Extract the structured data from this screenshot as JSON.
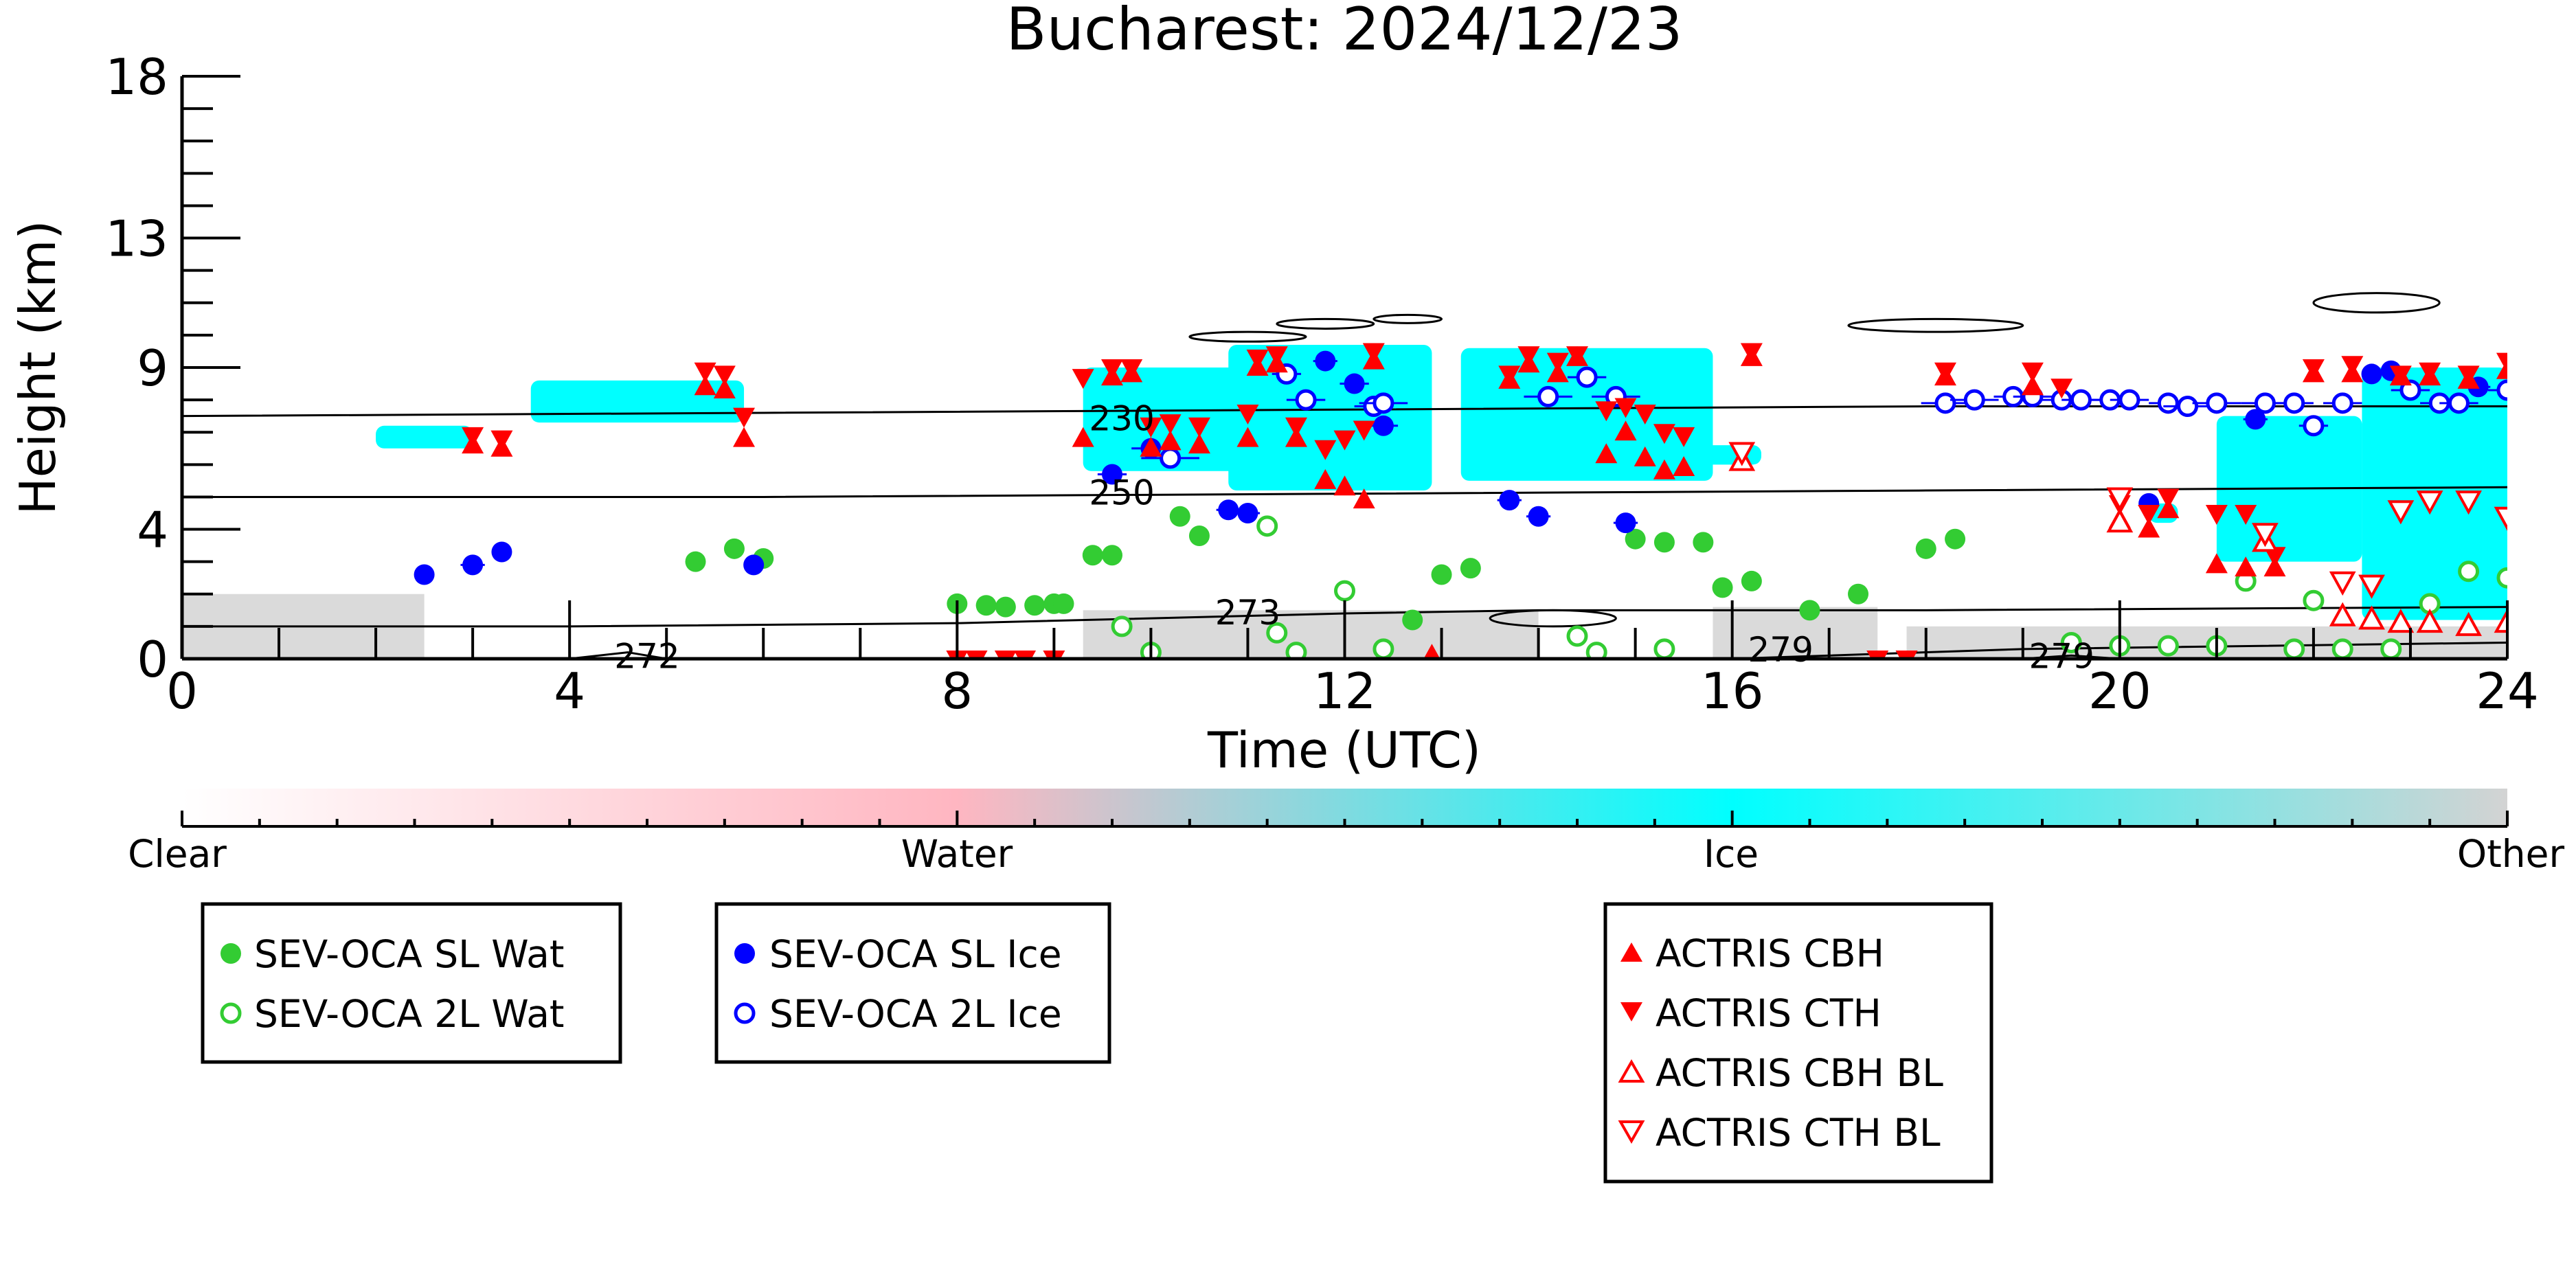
{
  "chart_data": {
    "type": "scatter",
    "title": "Bucharest: 2024/12/23",
    "xlabel": "Time (UTC)",
    "ylabel": "Height (km)",
    "xlim": [
      0,
      24
    ],
    "ylim": [
      0,
      18
    ],
    "x_ticks": [
      0,
      4,
      8,
      12,
      16,
      20,
      24
    ],
    "x_tick_labels": [
      "0",
      "4",
      "8",
      "12",
      "16",
      "20",
      "24"
    ],
    "y_ticks": [
      0,
      4,
      9,
      13,
      18
    ],
    "y_tick_labels": [
      "0",
      "4",
      "9",
      "13",
      "18"
    ],
    "grid": false,
    "background_classification": {
      "colorbar_labels": [
        "Clear",
        "Water",
        "Ice",
        "Other"
      ],
      "colors": {
        "clear": "#ffffff",
        "water": "#ffb6c1",
        "ice": "#00ffff",
        "other": "#d3d3d3"
      },
      "ice_regions": [
        {
          "t_start": 2.0,
          "t_end": 3.0,
          "h_start": 6.5,
          "h_end": 7.2
        },
        {
          "t_start": 3.6,
          "t_end": 5.8,
          "h_start": 7.3,
          "h_end": 8.6
        },
        {
          "t_start": 9.3,
          "t_end": 11.0,
          "h_start": 5.8,
          "h_end": 9.0
        },
        {
          "t_start": 10.8,
          "t_end": 12.9,
          "h_start": 5.2,
          "h_end": 9.7
        },
        {
          "t_start": 13.2,
          "t_end": 15.8,
          "h_start": 5.5,
          "h_end": 9.6
        },
        {
          "t_start": 15.6,
          "t_end": 16.3,
          "h_start": 6.0,
          "h_end": 6.6
        },
        {
          "t_start": 20.3,
          "t_end": 20.6,
          "h_start": 4.2,
          "h_end": 4.8
        },
        {
          "t_start": 21.0,
          "t_end": 22.5,
          "h_start": 3.0,
          "h_end": 7.5
        },
        {
          "t_start": 22.5,
          "t_end": 24.0,
          "h_start": 1.2,
          "h_end": 9.0
        }
      ],
      "other_regions": [
        {
          "t_start": 0.0,
          "t_end": 2.5,
          "h_start": 0.0,
          "h_end": 2.0
        },
        {
          "t_start": 9.3,
          "t_end": 14.0,
          "h_start": 0.0,
          "h_end": 1.5
        },
        {
          "t_start": 15.8,
          "t_end": 17.5,
          "h_start": 0.0,
          "h_end": 1.6
        },
        {
          "t_start": 17.8,
          "t_end": 24.0,
          "h_start": 0.0,
          "h_end": 1.0
        }
      ]
    },
    "temperature_isolines": [
      {
        "label": "230",
        "label_pos": [
          9.7,
          7.4
        ],
        "points": [
          [
            0,
            7.5
          ],
          [
            6,
            7.6
          ],
          [
            12,
            7.7
          ],
          [
            18,
            7.8
          ],
          [
            24,
            7.8
          ]
        ]
      },
      {
        "label": "250",
        "label_pos": [
          9.7,
          5.1
        ],
        "points": [
          [
            0,
            5.0
          ],
          [
            6,
            5.0
          ],
          [
            12,
            5.1
          ],
          [
            18,
            5.2
          ],
          [
            24,
            5.3
          ]
        ]
      },
      {
        "label": "273",
        "label_pos": [
          11.0,
          1.4
        ],
        "points": [
          [
            0,
            1.0
          ],
          [
            4,
            1.0
          ],
          [
            8,
            1.1
          ],
          [
            12,
            1.4
          ],
          [
            14,
            1.5
          ],
          [
            18,
            1.5
          ],
          [
            24,
            1.6
          ]
        ]
      },
      {
        "label": "272",
        "label_pos": [
          4.8,
          0.05
        ],
        "points": [
          [
            4.0,
            0.0
          ],
          [
            4.6,
            0.2
          ],
          [
            5.0,
            0.0
          ]
        ]
      },
      {
        "label": "279",
        "label_pos": [
          16.5,
          0.25
        ],
        "points": [
          [
            16.0,
            0.0
          ],
          [
            19.0,
            0.3
          ],
          [
            24.0,
            0.5
          ]
        ]
      },
      {
        "label": "279",
        "label_pos": [
          19.4,
          0.05
        ],
        "points": [
          [
            19.0,
            0.0
          ],
          [
            19.5,
            0.1
          ],
          [
            20.0,
            0.0
          ]
        ]
      }
    ],
    "temperature_contours": [
      {
        "t_start": 10.4,
        "t_end": 11.6,
        "h_start": 9.8,
        "h_end": 10.1
      },
      {
        "t_start": 11.3,
        "t_end": 12.3,
        "h_start": 10.2,
        "h_end": 10.5
      },
      {
        "t_start": 12.3,
        "t_end": 13.0,
        "h_start": 10.4,
        "h_end": 10.6
      },
      {
        "t_start": 17.2,
        "t_end": 19.0,
        "h_start": 10.1,
        "h_end": 10.5
      },
      {
        "t_start": 22.0,
        "t_end": 23.3,
        "h_start": 10.7,
        "h_end": 11.3
      },
      {
        "t_start": 13.5,
        "t_end": 14.8,
        "h_start": 1.0,
        "h_end": 1.5
      }
    ],
    "series": [
      {
        "name": "SEV-OCA SL Wat",
        "marker": "filled-circle",
        "color": "#33cc33",
        "x": [
          5.3,
          5.7,
          6.0,
          8.0,
          8.3,
          8.5,
          8.8,
          9.0,
          9.1,
          9.4,
          9.6,
          10.3,
          10.5,
          12.7,
          13.0,
          13.3,
          15.0,
          15.3,
          15.7,
          15.9,
          16.2,
          16.8,
          17.3,
          18.0,
          18.3
        ],
        "y": [
          3.0,
          3.4,
          3.1,
          1.7,
          1.65,
          1.6,
          1.65,
          1.7,
          1.7,
          3.2,
          3.2,
          4.4,
          3.8,
          1.2,
          2.6,
          2.8,
          3.7,
          3.6,
          3.6,
          2.2,
          2.4,
          1.5,
          2.0,
          3.4,
          3.7
        ]
      },
      {
        "name": "SEV-OCA 2L Wat",
        "marker": "open-circle",
        "color": "#33cc33",
        "x": [
          9.7,
          10.0,
          11.2,
          11.3,
          11.5,
          12.0,
          12.4,
          14.4,
          14.6,
          15.3,
          19.5,
          20.0,
          20.5,
          21.0,
          21.3,
          21.8,
          22.0,
          22.3,
          22.8,
          23.2,
          23.6,
          24.0
        ],
        "y": [
          1.0,
          0.2,
          4.1,
          0.8,
          0.2,
          2.1,
          0.3,
          0.7,
          0.2,
          0.3,
          0.5,
          0.4,
          0.4,
          0.4,
          2.4,
          0.3,
          1.8,
          0.3,
          0.3,
          1.7,
          2.7,
          2.5
        ]
      },
      {
        "name": "SEV-OCA SL Ice",
        "marker": "filled-circle",
        "color": "#0000ff",
        "x": [
          2.5,
          3.0,
          3.3,
          5.9,
          9.6,
          10.0,
          10.8,
          11.0,
          11.8,
          12.1,
          12.4,
          13.7,
          14.0,
          14.9,
          20.3,
          21.4,
          22.6,
          22.8,
          23.7
        ],
        "y": [
          2.6,
          2.9,
          3.3,
          2.9,
          5.7,
          6.5,
          4.6,
          4.5,
          9.2,
          8.5,
          7.2,
          4.9,
          4.4,
          4.2,
          4.8,
          7.4,
          8.8,
          8.9,
          8.4
        ],
        "err_h": [
          0.2,
          0.25,
          0.2,
          0.2,
          0.3,
          0.4,
          0.25,
          0.25,
          0.25,
          0.3,
          0.3,
          0.25,
          0.25,
          0.25,
          0.2,
          0.25,
          0.2,
          0.2,
          0.25
        ]
      },
      {
        "name": "SEV-OCA 2L Ice",
        "marker": "open-circle",
        "color": "#0000ff",
        "x": [
          10.2,
          11.4,
          11.6,
          12.3,
          12.4,
          14.1,
          14.5,
          14.8,
          18.2,
          18.5,
          18.9,
          19.1,
          19.4,
          19.6,
          19.9,
          20.1,
          20.5,
          20.7,
          21.0,
          21.5,
          21.8,
          22.0,
          22.3,
          23.0,
          23.3,
          23.5,
          24.0
        ],
        "y": [
          6.2,
          8.8,
          8.0,
          7.8,
          7.9,
          8.1,
          8.7,
          8.1,
          7.9,
          8.0,
          8.1,
          8.1,
          8.0,
          8.0,
          8.0,
          8.0,
          7.9,
          7.8,
          7.9,
          7.9,
          7.9,
          7.2,
          7.9,
          8.3,
          7.9,
          7.9,
          8.3
        ],
        "err_h": [
          0.6,
          0.3,
          0.4,
          0.4,
          0.5,
          0.5,
          0.4,
          0.5,
          0.5,
          0.5,
          0.4,
          0.4,
          0.4,
          0.4,
          0.4,
          0.4,
          0.4,
          0.5,
          0.5,
          0.5,
          0.4,
          0.3,
          0.4,
          0.4,
          0.4,
          0.4,
          0.4
        ]
      },
      {
        "name": "ACTRIS CBH",
        "marker": "filled-triangle-up",
        "color": "#ff0000",
        "x": [
          3.0,
          3.3,
          5.4,
          5.6,
          5.8,
          9.3,
          9.6,
          9.8,
          10.0,
          10.2,
          10.5,
          11.0,
          11.1,
          11.3,
          11.5,
          11.8,
          12.0,
          12.2,
          12.3,
          12.9,
          13.7,
          13.9,
          14.2,
          14.4,
          14.7,
          14.9,
          15.1,
          15.3,
          15.5,
          16.2,
          18.2,
          19.1,
          20.0,
          20.3,
          20.5,
          21.0,
          21.3,
          21.6,
          22.0,
          22.4,
          22.9,
          23.2,
          23.6,
          24.0
        ],
        "y": [
          6.6,
          6.5,
          8.4,
          8.3,
          6.8,
          6.8,
          8.7,
          8.8,
          6.5,
          6.7,
          6.6,
          6.8,
          9.0,
          9.1,
          6.8,
          5.5,
          5.3,
          4.9,
          9.2,
          0.1,
          8.6,
          9.1,
          8.8,
          9.3,
          6.3,
          7.0,
          6.2,
          5.8,
          5.9,
          9.3,
          8.7,
          8.4,
          4.3,
          4.0,
          4.6,
          2.9,
          2.8,
          2.8,
          8.8,
          8.8,
          8.7,
          8.7,
          8.6,
          8.9
        ]
      },
      {
        "name": "ACTRIS CTH",
        "marker": "filled-triangle-down",
        "color": "#ff0000",
        "x": [
          3.0,
          3.3,
          5.4,
          5.6,
          5.8,
          8.0,
          8.2,
          8.5,
          8.7,
          9.0,
          9.3,
          9.6,
          9.8,
          10.0,
          10.2,
          10.5,
          11.0,
          11.1,
          11.3,
          11.5,
          11.8,
          12.0,
          12.2,
          12.3,
          13.7,
          13.9,
          14.2,
          14.4,
          14.7,
          14.9,
          15.1,
          15.3,
          15.5,
          16.2,
          17.5,
          17.8,
          18.2,
          19.1,
          19.4,
          20.0,
          20.3,
          20.5,
          21.0,
          21.3,
          21.6,
          22.0,
          22.4,
          22.9,
          23.2,
          23.6,
          24.0
        ],
        "y": [
          6.9,
          6.8,
          8.9,
          8.8,
          7.5,
          0.0,
          0.0,
          0.0,
          0.0,
          0.0,
          8.7,
          9.0,
          9.0,
          7.2,
          7.3,
          7.2,
          7.6,
          9.3,
          9.4,
          7.2,
          6.5,
          6.8,
          7.1,
          9.5,
          8.8,
          9.4,
          9.2,
          9.4,
          7.7,
          7.8,
          7.6,
          7.0,
          6.9,
          9.5,
          0.0,
          0.0,
          8.9,
          8.9,
          8.4,
          4.8,
          4.5,
          5.0,
          4.5,
          4.5,
          3.2,
          9.0,
          9.1,
          8.8,
          8.9,
          8.8,
          9.2
        ]
      },
      {
        "name": "ACTRIS CBH BL",
        "marker": "open-triangle-up",
        "color": "#ff0000",
        "x": [
          16.1,
          20.0,
          21.5,
          22.3,
          22.6,
          22.9,
          23.2,
          23.6,
          24.0
        ],
        "y": [
          6.1,
          4.2,
          3.6,
          1.3,
          1.2,
          1.1,
          1.1,
          1.0,
          1.1
        ]
      },
      {
        "name": "ACTRIS CTH BL",
        "marker": "open-triangle-down",
        "color": "#ff0000",
        "x": [
          16.1,
          20.0,
          21.5,
          22.3,
          22.6,
          22.9,
          23.2,
          23.6,
          24.0
        ],
        "y": [
          6.4,
          5.0,
          3.9,
          2.4,
          2.3,
          4.6,
          4.9,
          4.9,
          4.4
        ]
      }
    ],
    "legends": [
      {
        "entries": [
          "SEV-OCA SL Wat",
          "SEV-OCA 2L Wat"
        ]
      },
      {
        "entries": [
          "SEV-OCA SL Ice",
          "SEV-OCA 2L Ice"
        ]
      },
      {
        "entries": [
          "ACTRIS CBH",
          "ACTRIS CTH",
          "ACTRIS CBH BL",
          "ACTRIS CTH BL"
        ]
      }
    ]
  }
}
